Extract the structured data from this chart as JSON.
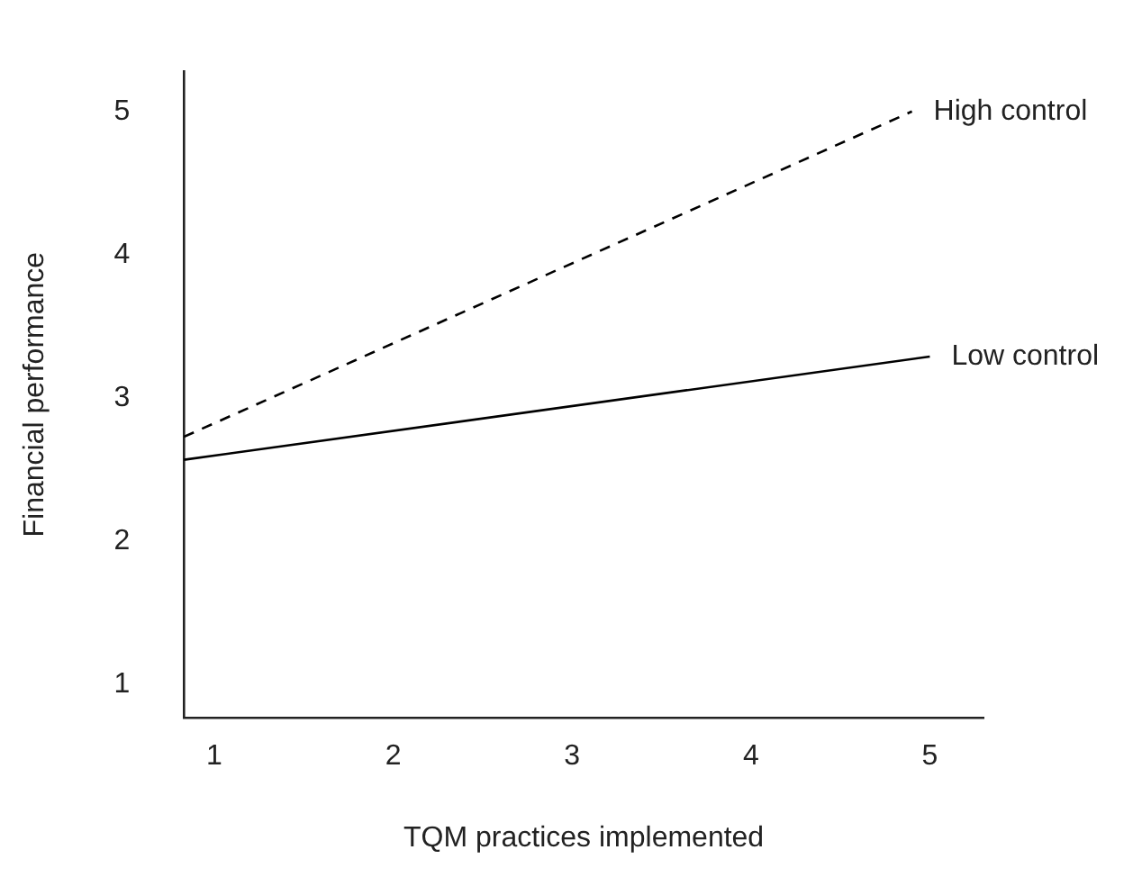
{
  "chart_data": {
    "type": "line",
    "xlabel": "TQM practices implemented",
    "ylabel": "Financial performance",
    "xlim": [
      0.83,
      5.3
    ],
    "xticks": [
      1,
      2,
      3,
      4,
      5
    ],
    "ylim": [
      0.77,
      5.28
    ],
    "yticks": [
      1,
      2,
      3,
      4,
      5
    ],
    "grid": false,
    "legend": false,
    "marker": "none",
    "series": [
      {
        "name": "High control",
        "color": "#000000",
        "line_style": "dashed",
        "x": [
          0.83,
          4.9
        ],
        "values": [
          2.73,
          5.0
        ]
      },
      {
        "name": "Low control",
        "color": "#000000",
        "line_style": "solid",
        "x": [
          0.83,
          5.0
        ],
        "values": [
          2.57,
          3.29
        ]
      }
    ]
  }
}
